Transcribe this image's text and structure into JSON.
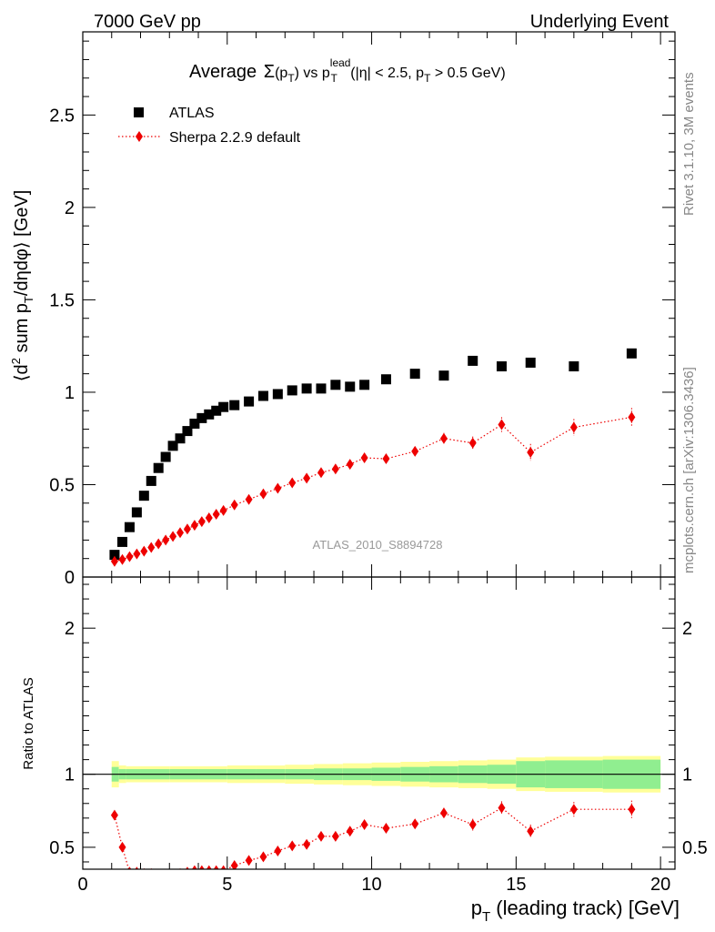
{
  "header": {
    "left": "7000 GeV pp",
    "right": "Underlying Event"
  },
  "side_labels": {
    "rivet": "Rivet 3.1.10,  3M events",
    "mcplots": "mcplots.cern.ch [arXiv:1306.3436]"
  },
  "chart_data": {
    "type": "scatter",
    "title": {
      "prefix": "Average",
      "sigma": "Σ",
      "arg": "(p",
      "arg_sub": "T",
      "arg_close": ")",
      "vs": " vs p",
      "vs_sup": "lead",
      "vs_sub": "T",
      "cuts": " (|η| < 2.5, p",
      "cuts_sub": "T",
      "cuts_end": " > 0.5 GeV)"
    },
    "xlabel": {
      "main": "p",
      "sub": "T",
      "rest": " (leading track) [GeV]"
    },
    "ylabel": {
      "a": "⟨d",
      "sup": "2",
      "b": " sum p",
      "sub": "T",
      "c": "/dηdφ⟩ [GeV]"
    },
    "ratio_ylabel": "Ratio to ATLAS",
    "watermark": "ATLAS_2010_S8894728",
    "xlim": [
      0,
      20.5
    ],
    "ylim": [
      0,
      2.95
    ],
    "ratio_ylim": [
      0.35,
      2.35
    ],
    "x_ticks": [
      "0",
      "5",
      "10",
      "15",
      "20"
    ],
    "y_ticks": [
      "0",
      "0.5",
      "1",
      "1.5",
      "2",
      "2.5"
    ],
    "ratio_ticks": [
      "0.5",
      "1",
      "2"
    ],
    "legend": {
      "position": "top-left"
    },
    "series": [
      {
        "name": "ATLAS",
        "marker": "square",
        "color": "#000000",
        "x": [
          1.1,
          1.37,
          1.62,
          1.87,
          2.12,
          2.37,
          2.62,
          2.87,
          3.12,
          3.37,
          3.62,
          3.87,
          4.12,
          4.37,
          4.62,
          4.87,
          5.25,
          5.75,
          6.25,
          6.75,
          7.25,
          7.75,
          8.25,
          8.75,
          9.25,
          9.75,
          10.5,
          11.5,
          12.5,
          13.5,
          14.5,
          15.5,
          17.0,
          19.0
        ],
        "y": [
          0.12,
          0.19,
          0.27,
          0.35,
          0.44,
          0.52,
          0.59,
          0.65,
          0.71,
          0.75,
          0.79,
          0.83,
          0.86,
          0.88,
          0.9,
          0.92,
          0.93,
          0.95,
          0.98,
          0.99,
          1.01,
          1.02,
          1.02,
          1.04,
          1.03,
          1.04,
          1.07,
          1.1,
          1.09,
          1.17,
          1.14,
          1.16,
          1.14,
          1.21
        ]
      },
      {
        "name": "Sherpa 2.2.9 default",
        "marker": "diamond",
        "line": "dotted",
        "color": "#ee0000",
        "x": [
          1.1,
          1.37,
          1.62,
          1.87,
          2.12,
          2.37,
          2.62,
          2.87,
          3.12,
          3.37,
          3.62,
          3.87,
          4.12,
          4.37,
          4.62,
          4.87,
          5.25,
          5.75,
          6.25,
          6.75,
          7.25,
          7.75,
          8.25,
          8.75,
          9.25,
          9.75,
          10.5,
          11.5,
          12.5,
          13.5,
          14.5,
          15.5,
          17.0,
          19.0
        ],
        "y": [
          0.085,
          0.095,
          0.11,
          0.125,
          0.14,
          0.16,
          0.18,
          0.2,
          0.22,
          0.24,
          0.26,
          0.28,
          0.3,
          0.32,
          0.34,
          0.36,
          0.39,
          0.42,
          0.45,
          0.48,
          0.51,
          0.535,
          0.565,
          0.585,
          0.61,
          0.645,
          0.64,
          0.68,
          0.75,
          0.725,
          0.825,
          0.675,
          0.81,
          0.865
        ],
        "err": [
          0.005,
          0.005,
          0.005,
          0.005,
          0.005,
          0.005,
          0.006,
          0.006,
          0.006,
          0.007,
          0.007,
          0.007,
          0.008,
          0.008,
          0.009,
          0.009,
          0.01,
          0.01,
          0.012,
          0.013,
          0.014,
          0.015,
          0.016,
          0.017,
          0.018,
          0.02,
          0.022,
          0.025,
          0.03,
          0.035,
          0.04,
          0.045,
          0.045,
          0.05
        ],
        "ratio": [
          0.72,
          0.5,
          0.33,
          0.33,
          0.32,
          0.32,
          0.31,
          0.31,
          0.31,
          0.32,
          0.33,
          0.34,
          0.34,
          0.34,
          0.34,
          0.34,
          0.375,
          0.41,
          0.435,
          0.475,
          0.51,
          0.52,
          0.575,
          0.575,
          0.61,
          0.655,
          0.63,
          0.66,
          0.735,
          0.655,
          0.77,
          0.61,
          0.76,
          0.76
        ],
        "ratio_err": [
          0.02,
          0.02,
          0.01,
          0.01,
          0.01,
          0.01,
          0.01,
          0.01,
          0.01,
          0.01,
          0.01,
          0.01,
          0.01,
          0.01,
          0.01,
          0.01,
          0.012,
          0.012,
          0.014,
          0.015,
          0.016,
          0.018,
          0.02,
          0.022,
          0.024,
          0.026,
          0.028,
          0.03,
          0.035,
          0.04,
          0.045,
          0.045,
          0.05,
          0.06
        ]
      }
    ],
    "uncertainty_band": {
      "stat_color": "#90ee90",
      "total_color": "#ffff99",
      "edges": [
        1.0,
        1.25,
        1.5,
        2.0,
        3.0,
        4.0,
        5.0,
        6.0,
        7.0,
        8.0,
        9.0,
        10.0,
        11.0,
        12.0,
        13.0,
        14.0,
        15.0,
        16.0,
        18.0,
        20.0
      ],
      "inner_half": [
        0.05,
        0.035,
        0.035,
        0.035,
        0.035,
        0.035,
        0.035,
        0.035,
        0.035,
        0.04,
        0.04,
        0.045,
        0.05,
        0.055,
        0.06,
        0.065,
        0.09,
        0.095,
        0.1
      ],
      "outer_half": [
        0.09,
        0.06,
        0.055,
        0.055,
        0.055,
        0.055,
        0.06,
        0.06,
        0.065,
        0.07,
        0.075,
        0.08,
        0.085,
        0.09,
        0.095,
        0.1,
        0.115,
        0.12,
        0.125
      ]
    }
  }
}
